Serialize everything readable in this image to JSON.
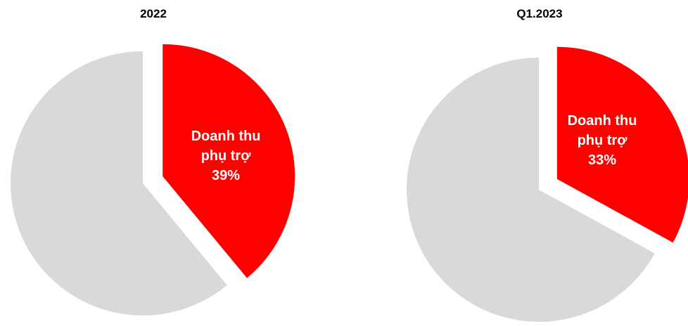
{
  "colors": {
    "highlight": "#FF0000",
    "other": "#D9D9D9",
    "background": "#FFFFFF",
    "title": "#000000",
    "label": "#FFFFFF"
  },
  "chart_data": [
    {
      "type": "pie",
      "title": "2022",
      "slices": [
        {
          "value": 39,
          "color": "#FF0000",
          "exploded": true,
          "label_lines": [
            "Doanh thu",
            "phụ trợ",
            "39%"
          ]
        },
        {
          "value": 61,
          "color": "#D9D9D9",
          "exploded": false,
          "label_lines": []
        }
      ]
    },
    {
      "type": "pie",
      "title": "Q1.2023",
      "slices": [
        {
          "value": 33,
          "color": "#FF0000",
          "exploded": true,
          "label_lines": [
            "Doanh thu",
            "phụ trợ",
            "33%"
          ]
        },
        {
          "value": 67,
          "color": "#D9D9D9",
          "exploded": false,
          "label_lines": []
        }
      ]
    }
  ]
}
